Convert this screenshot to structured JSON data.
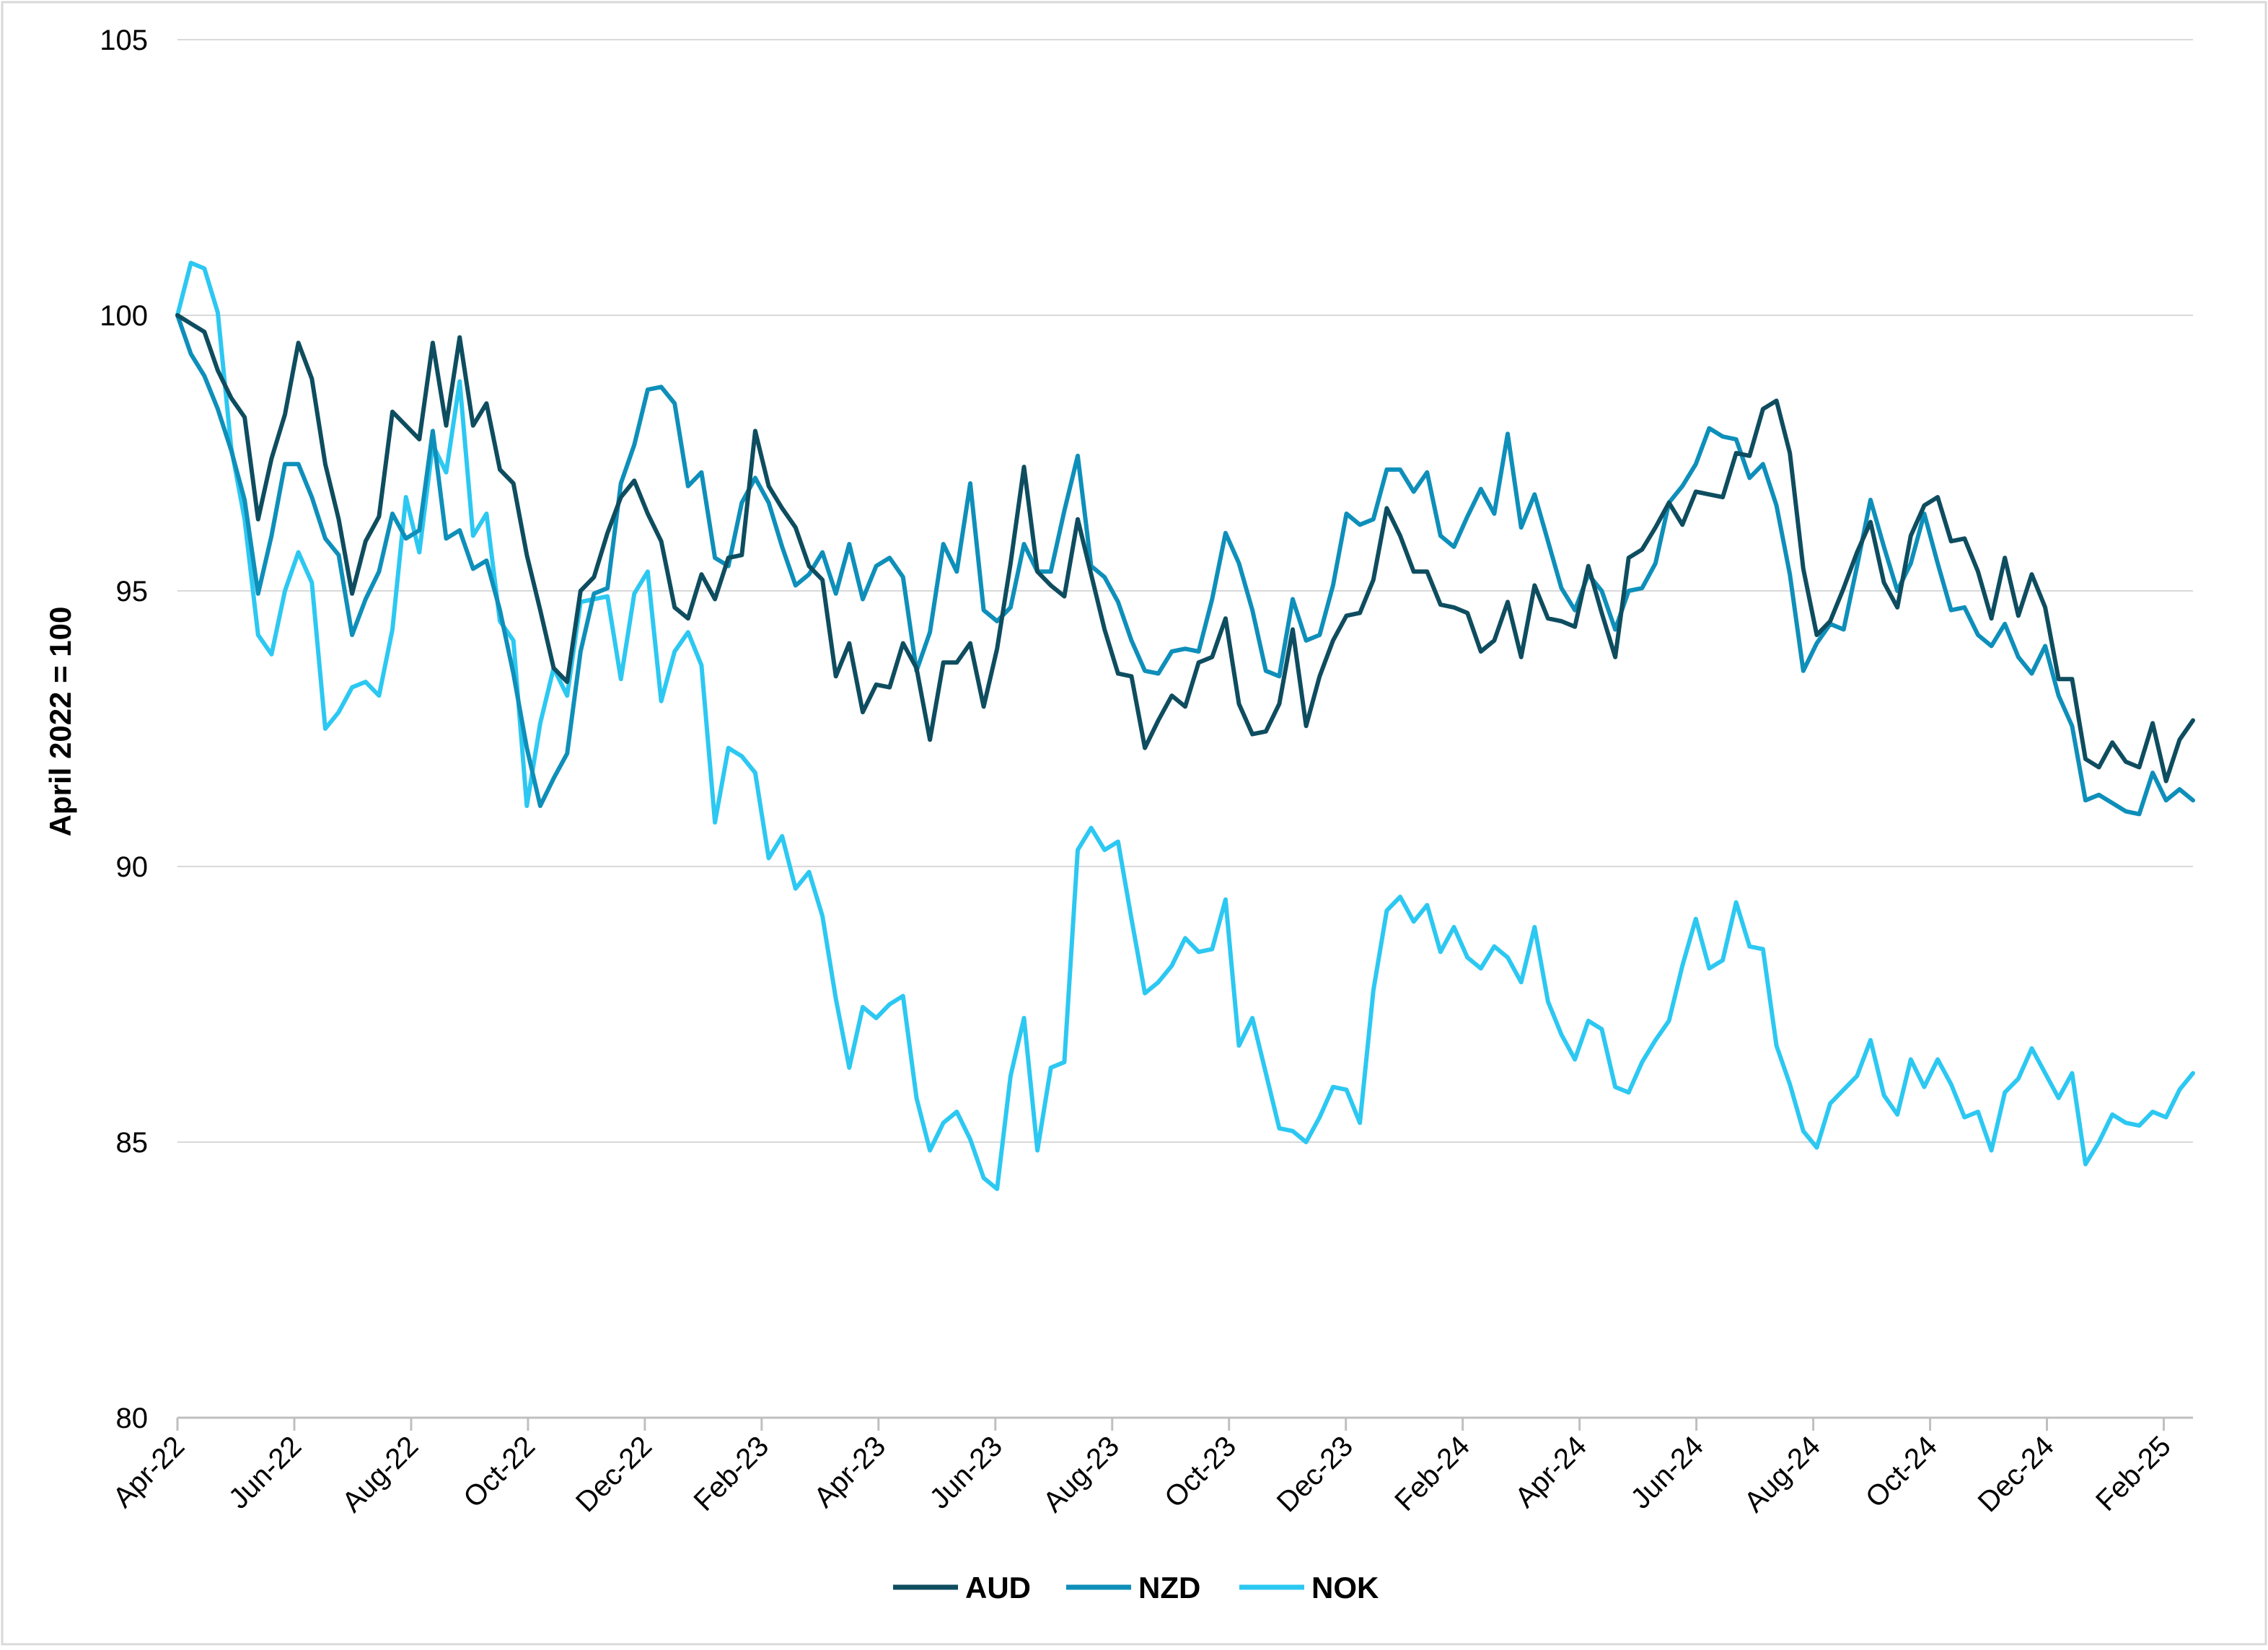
{
  "chart_data": {
    "type": "line",
    "title": "",
    "xlabel": "",
    "ylabel": "April 2022 = 100",
    "ylim": [
      80,
      105
    ],
    "yticks": [
      80,
      85,
      90,
      95,
      100,
      105
    ],
    "grid": "horizontal",
    "legend": "bottom-center",
    "x_start": "2022-04",
    "x_end": "2025-02",
    "xtick_labels": [
      "Apr-22",
      "Jun-22",
      "Aug-22",
      "Oct-22",
      "Dec-22",
      "Feb-23",
      "Apr-23",
      "Jun-23",
      "Aug-23",
      "Oct-23",
      "Dec-23",
      "Feb-24",
      "Apr-24",
      "Jun-24",
      "Aug-24",
      "Oct-24",
      "Dec-24",
      "Feb-25"
    ],
    "series": [
      {
        "name": "AUD",
        "color": "#0E4D5F",
        "values": [
          100.0,
          99.85,
          99.7,
          99.0,
          98.5,
          98.15,
          96.3,
          97.4,
          98.2,
          99.5,
          98.85,
          97.3,
          96.3,
          94.95,
          95.9,
          96.35,
          98.25,
          98.0,
          97.75,
          99.5,
          98.0,
          99.6,
          98.0,
          98.4,
          97.2,
          96.95,
          95.65,
          94.65,
          93.6,
          93.35,
          95.0,
          95.25,
          96.05,
          96.7,
          97.0,
          96.4,
          95.9,
          94.7,
          94.5,
          95.3,
          94.85,
          95.6,
          95.65,
          97.9,
          96.9,
          96.5,
          96.15,
          95.45,
          95.2,
          93.45,
          94.05,
          92.8,
          93.3,
          93.25,
          94.05,
          93.6,
          92.3,
          93.7,
          93.7,
          94.05,
          92.9,
          93.95,
          95.5,
          97.25,
          95.35,
          95.1,
          94.9,
          96.3,
          95.3,
          94.3,
          93.5,
          93.45,
          92.15,
          92.65,
          93.1,
          92.9,
          93.7,
          93.8,
          94.5,
          92.95,
          92.4,
          92.45,
          92.95,
          94.3,
          92.55,
          93.45,
          94.1,
          94.55,
          94.6,
          95.2,
          96.5,
          96.0,
          95.35,
          95.35,
          94.75,
          94.7,
          94.6,
          93.9,
          94.1,
          94.8,
          93.8,
          95.1,
          94.5,
          94.45,
          94.35,
          95.45,
          94.6,
          93.8,
          95.6,
          95.75,
          96.15,
          96.6,
          96.2,
          96.8,
          96.75,
          96.7,
          97.5,
          97.45,
          98.3,
          98.45,
          97.5,
          95.4,
          94.2,
          94.45,
          95.05,
          95.7,
          96.25,
          95.15,
          94.7,
          96.0,
          96.55,
          96.7,
          95.9,
          95.95,
          95.35,
          94.5,
          95.6,
          94.55,
          95.3,
          94.7,
          93.4,
          93.4,
          91.95,
          91.8,
          92.25,
          91.9,
          91.8,
          92.6,
          91.55,
          92.3,
          92.65
        ]
      },
      {
        "name": "NZD",
        "color": "#0E8FBA",
        "values": [
          100.0,
          99.3,
          98.9,
          98.3,
          97.55,
          96.65,
          94.95,
          96.0,
          97.3,
          97.3,
          96.7,
          95.95,
          95.65,
          94.2,
          94.85,
          95.35,
          96.4,
          95.95,
          96.1,
          97.9,
          95.95,
          96.1,
          95.4,
          95.55,
          94.65,
          93.5,
          92.15,
          91.1,
          91.6,
          92.05,
          93.9,
          94.95,
          95.05,
          96.95,
          97.65,
          98.65,
          98.7,
          98.4,
          96.9,
          97.15,
          95.6,
          95.45,
          96.6,
          97.05,
          96.6,
          95.8,
          95.1,
          95.3,
          95.7,
          94.95,
          95.85,
          94.85,
          95.45,
          95.6,
          95.25,
          93.55,
          94.25,
          95.85,
          95.35,
          96.95,
          94.65,
          94.45,
          94.7,
          95.85,
          95.35,
          95.35,
          96.45,
          97.45,
          95.45,
          95.25,
          94.8,
          94.1,
          93.55,
          93.5,
          93.9,
          93.95,
          93.9,
          94.85,
          96.05,
          95.5,
          94.65,
          93.55,
          93.45,
          94.85,
          94.1,
          94.2,
          95.1,
          96.4,
          96.2,
          96.3,
          97.2,
          97.2,
          96.8,
          97.15,
          96.0,
          95.8,
          96.35,
          96.85,
          96.4,
          97.85,
          96.15,
          96.75,
          95.9,
          95.05,
          94.65,
          95.3,
          95.0,
          94.3,
          95.0,
          95.05,
          95.5,
          96.6,
          96.9,
          97.3,
          97.95,
          97.8,
          97.75,
          97.05,
          97.3,
          96.55,
          95.3,
          93.55,
          94.05,
          94.4,
          94.3,
          95.45,
          96.65,
          95.8,
          95.0,
          95.5,
          96.4,
          95.5,
          94.65,
          94.7,
          94.2,
          94.0,
          94.4,
          93.8,
          93.5,
          94.0,
          93.1,
          92.55,
          91.2,
          91.3,
          91.15,
          91.0,
          90.95,
          91.7,
          91.2,
          91.4,
          91.2
        ]
      },
      {
        "name": "NOK",
        "color": "#2CC8F2",
        "values": [
          100.0,
          100.95,
          100.85,
          100.05,
          97.6,
          96.3,
          94.2,
          93.85,
          95.0,
          95.7,
          95.15,
          92.5,
          92.8,
          93.25,
          93.35,
          93.1,
          94.3,
          96.7,
          95.7,
          97.65,
          97.15,
          98.8,
          96.0,
          96.4,
          94.45,
          94.1,
          91.1,
          92.6,
          93.6,
          93.1,
          94.8,
          94.85,
          94.9,
          93.4,
          94.95,
          95.35,
          93.0,
          93.9,
          94.25,
          93.65,
          90.8,
          92.15,
          92.0,
          91.7,
          90.15,
          90.55,
          89.6,
          89.9,
          89.1,
          87.6,
          86.35,
          87.45,
          87.25,
          87.5,
          87.65,
          85.8,
          84.85,
          85.35,
          85.55,
          85.05,
          84.35,
          84.15,
          86.2,
          87.25,
          84.85,
          86.35,
          86.45,
          90.3,
          90.7,
          90.3,
          90.45,
          89.05,
          87.7,
          87.9,
          88.2,
          88.7,
          88.45,
          88.5,
          89.4,
          86.75,
          87.25,
          86.25,
          85.25,
          85.2,
          85.0,
          85.45,
          86.0,
          85.95,
          85.35,
          87.75,
          89.2,
          89.45,
          89.0,
          89.3,
          88.45,
          88.9,
          88.35,
          88.15,
          88.55,
          88.35,
          87.9,
          88.9,
          87.55,
          86.95,
          86.5,
          87.2,
          87.05,
          86.0,
          85.9,
          86.45,
          86.85,
          87.2,
          88.2,
          89.05,
          88.15,
          88.3,
          89.35,
          88.55,
          88.5,
          86.75,
          86.05,
          85.2,
          84.9,
          85.7,
          85.95,
          86.2,
          86.85,
          85.85,
          85.5,
          86.5,
          86.0,
          86.5,
          86.05,
          85.45,
          85.55,
          84.85,
          85.9,
          86.15,
          86.7,
          86.25,
          85.8,
          86.25,
          84.6,
          85.0,
          85.5,
          85.35,
          85.3,
          85.55,
          85.45,
          85.95,
          86.25
        ]
      }
    ]
  }
}
